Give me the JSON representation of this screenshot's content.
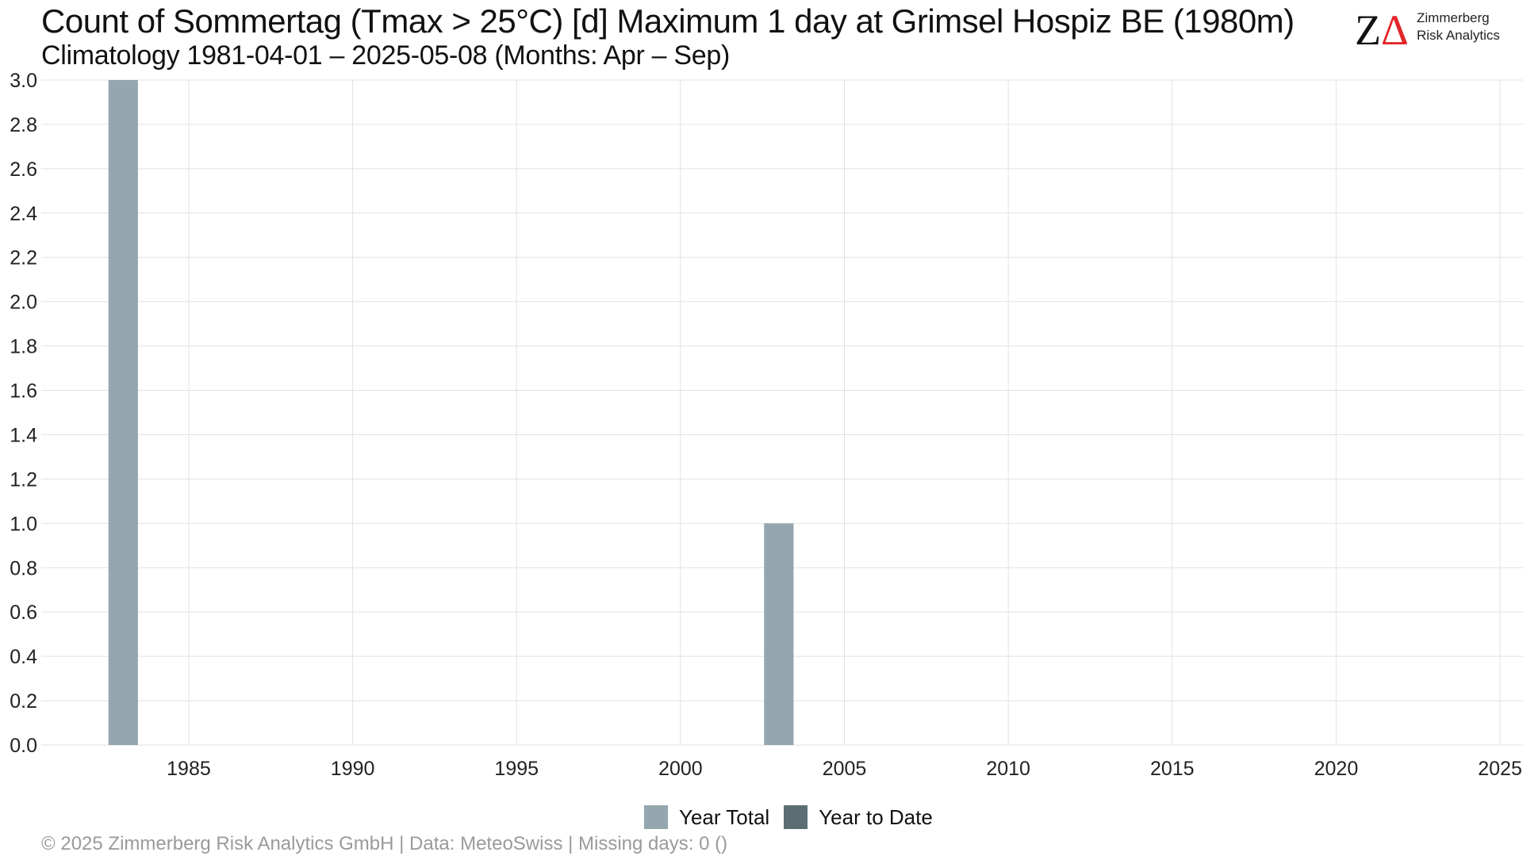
{
  "header": {
    "title": "Count of Sommertag (Tmax > 25°C) [d] Maximum 1 day at Grimsel Hospiz  BE (1980m)",
    "subtitle": "Climatology 1981-04-01 – 2025-05-08 (Months: Apr – Sep)"
  },
  "logo": {
    "mark_z": "Z",
    "mark_delta": "Δ",
    "line1": "Zimmerberg",
    "line2": "Risk Analytics"
  },
  "footer": {
    "text": "©  2025 Zimmerberg Risk Analytics GmbH | Data: MeteoSwiss | Missing days: 0 ()"
  },
  "colors": {
    "year_total": "#94a6ae",
    "year_to_date": "#5b6e74",
    "grid": "#e2e2e2"
  },
  "chart_data": {
    "type": "bar",
    "title": "Count of Sommertag (Tmax > 25°C) [d] Maximum 1 day at Grimsel Hospiz  BE (1980m)",
    "subtitle": "Climatology 1981-04-01 – 2025-05-08 (Months: Apr – Sep)",
    "xlabel": "",
    "ylabel": "",
    "xlim": [
      1980.5,
      2025.7
    ],
    "ylim": [
      0,
      3.0
    ],
    "x_ticks": [
      1985,
      1990,
      1995,
      2000,
      2005,
      2010,
      2015,
      2020,
      2025
    ],
    "y_ticks": [
      0.0,
      0.2,
      0.4,
      0.6,
      0.8,
      1.0,
      1.2,
      1.4,
      1.6,
      1.8,
      2.0,
      2.2,
      2.4,
      2.6,
      2.8,
      3.0
    ],
    "grid": true,
    "legend_position": "bottom-center",
    "series": [
      {
        "name": "Year Total",
        "color": "#94a6ae",
        "points": [
          {
            "x": 1983,
            "y": 3
          },
          {
            "x": 2003,
            "y": 1
          }
        ]
      },
      {
        "name": "Year to Date",
        "color": "#5b6e74",
        "points": []
      }
    ]
  }
}
